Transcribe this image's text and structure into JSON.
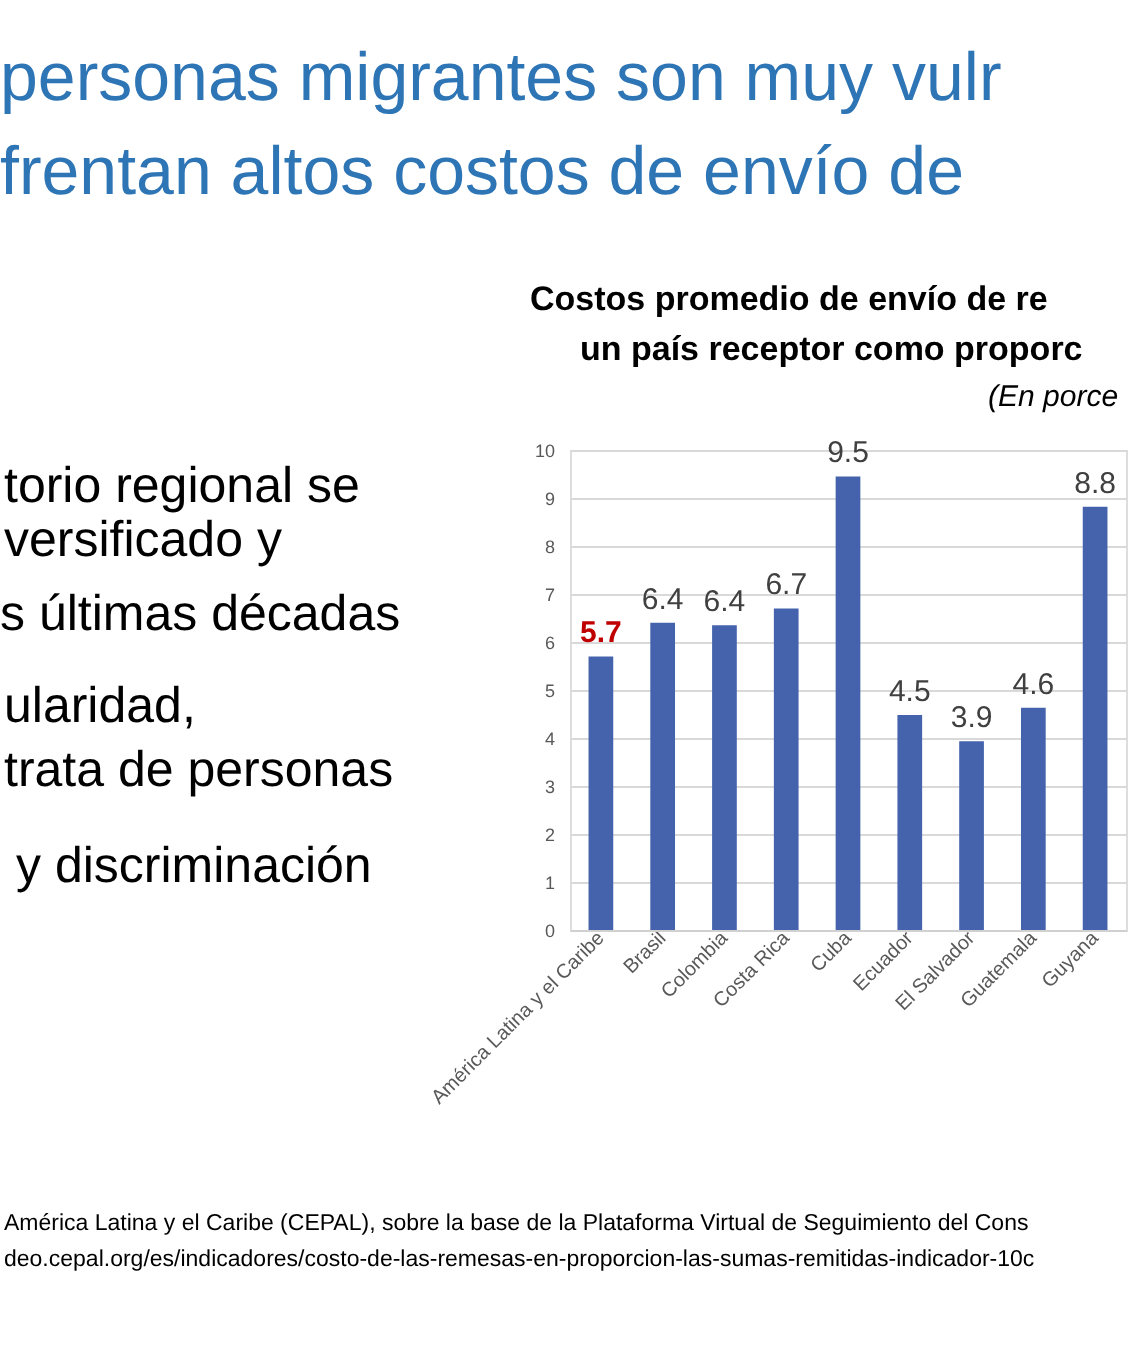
{
  "chart_data": {
    "type": "bar",
    "title": [
      "Costos promedio de envío de re",
      "un país receptor como proporc"
    ],
    "subtitle": "(En porce",
    "categories": [
      "América Latina y el Caribe",
      "Brasil",
      "Colombia",
      "Costa Rica",
      "Cuba",
      "Ecuador",
      "El Salvador",
      "Guatemala",
      "Guyana"
    ],
    "values": [
      5.7,
      6.4,
      6.35,
      6.7,
      9.45,
      4.48,
      3.93,
      4.63,
      8.82
    ],
    "value_labels": [
      null,
      "6.4",
      "6.4",
      "6.7",
      "9.5",
      "4.5",
      "3.9",
      "4.6",
      "8.8"
    ],
    "color": "#4563ac",
    "ylim": [
      0,
      10
    ],
    "yticks": [
      0,
      1,
      2,
      3,
      4,
      5,
      6,
      7,
      8,
      9,
      10
    ],
    "grid": "y",
    "annotations": [
      "personas migrantes son muy vulr",
      "frentan altos costos de envío de",
      "torio regional se",
      "versificado y",
      "s últimas décadas",
      "ularidad,",
      "trata de personas",
      "y discriminación",
      "América Latina y el Caribe (CEPAL), sobre la base de la Plataforma Virtual de Seguimiento del Cons",
      "deo.cepal.org/es/indicadores/costo-de-las-remesas-en-proporcion-las-sumas-remitidas-indicador-10c",
      {
        "text": "5.7",
        "x": "América Latina y el Caribe",
        "y": 5.7
      }
    ]
  }
}
